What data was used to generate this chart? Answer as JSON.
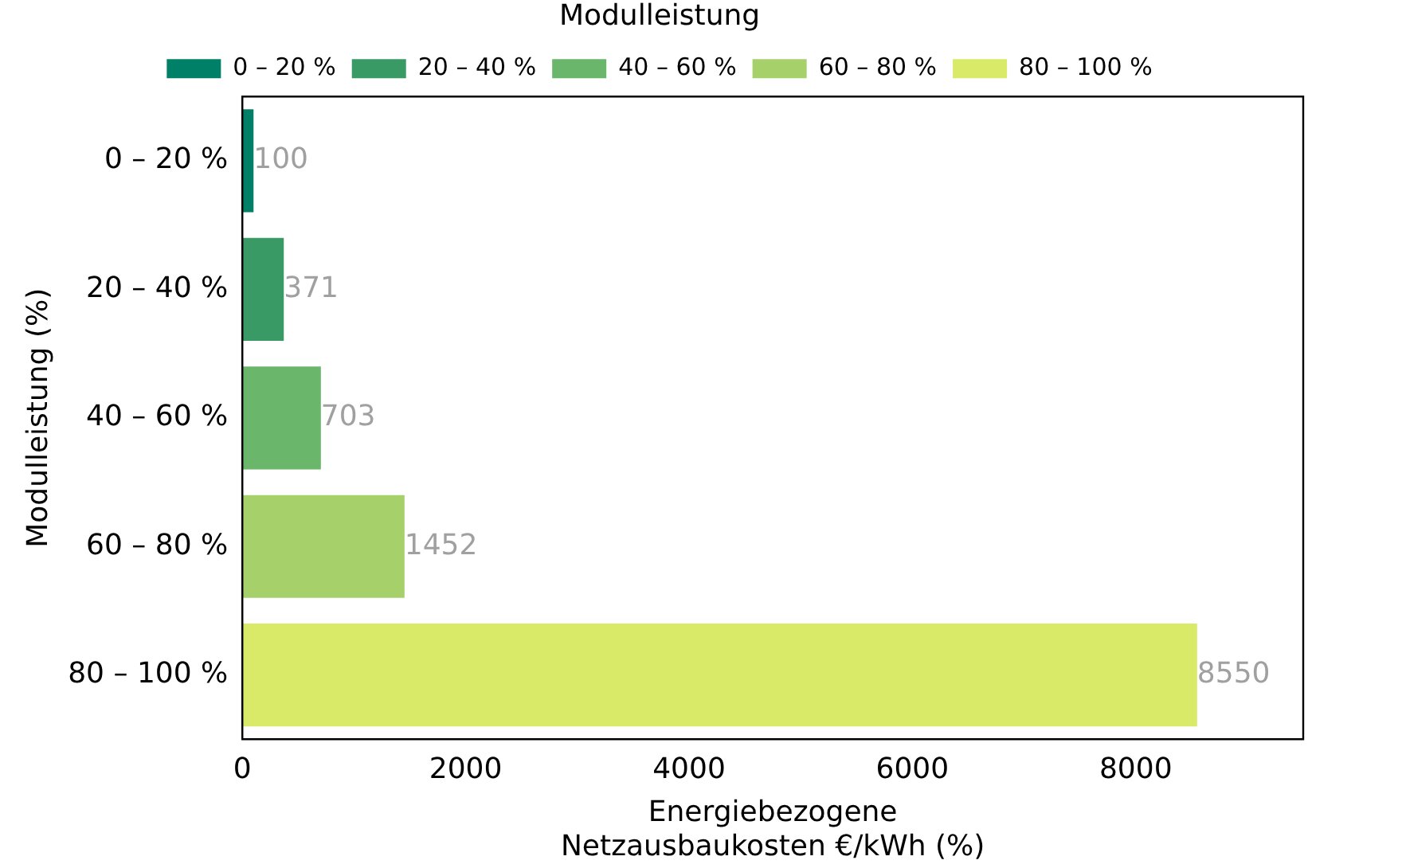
{
  "chart_data": {
    "type": "bar",
    "orientation": "horizontal",
    "xlabel": "Energiebezogene\nNetzausbaukosten €/kWh (%)",
    "ylabel": "Modulleistung (%)",
    "legend_title": "Modulleistung",
    "legend": "top",
    "categories": [
      "0 – 20 %",
      "20 – 40 %",
      "40 – 60 %",
      "60 – 80 %",
      "80 – 100 %"
    ],
    "series": [
      {
        "name": "0 – 20 %",
        "color": "#008066",
        "values": [
          100,
          null,
          null,
          null,
          null
        ]
      },
      {
        "name": "20 – 40 %",
        "color": "#3a9a66",
        "values": [
          null,
          371,
          null,
          null,
          null
        ]
      },
      {
        "name": "40 – 60 %",
        "color": "#6ab66a",
        "values": [
          null,
          null,
          703,
          null,
          null
        ]
      },
      {
        "name": "60 – 80 %",
        "color": "#a6d06a",
        "values": [
          null,
          null,
          null,
          1452,
          null
        ]
      },
      {
        "name": "80 – 100 %",
        "color": "#d9ea68",
        "values": [
          null,
          null,
          null,
          null,
          8550
        ]
      }
    ],
    "xlim": [
      0,
      9500
    ],
    "xticks": [
      0,
      2000,
      4000,
      6000,
      8000
    ],
    "data_labels": true
  }
}
